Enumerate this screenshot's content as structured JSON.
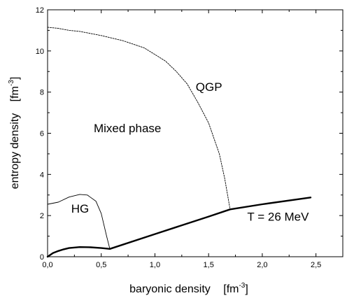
{
  "chart_data": {
    "type": "line",
    "xlabel": "baryonic density",
    "xunit_base": "fm",
    "xunit_exp": "-3",
    "ylabel": "entropy density",
    "yunit_base": "fm",
    "yunit_exp": "-3",
    "xlim": [
      0,
      2.75
    ],
    "ylim": [
      0,
      12
    ],
    "xticks": [
      0,
      0.5,
      1.0,
      1.5,
      2.0,
      2.5
    ],
    "xtick_labels": [
      "0,0",
      "0,5",
      "1,0",
      "1,5",
      "2,0",
      "2,5"
    ],
    "yticks": [
      0,
      2,
      4,
      6,
      8,
      10,
      12
    ],
    "ytick_labels": [
      "0",
      "2",
      "4",
      "6",
      "8",
      "10",
      "12"
    ],
    "annotations": [
      {
        "text": "QGP",
        "x": 1.38,
        "y": 8.05
      },
      {
        "text": "Mixed phase",
        "x": 0.43,
        "y": 6.05
      },
      {
        "text": "HG",
        "x": 0.22,
        "y": 2.15
      },
      {
        "text": "T = 26 MeV",
        "x": 1.86,
        "y": 1.75
      }
    ],
    "series": [
      {
        "style": "thick-solid",
        "x": [
          0.0,
          0.05,
          0.1,
          0.15,
          0.2,
          0.3,
          0.4,
          0.5,
          0.58,
          1.0,
          1.5,
          1.7,
          2.0,
          2.45
        ],
        "y": [
          0.0,
          0.18,
          0.28,
          0.36,
          0.42,
          0.47,
          0.46,
          0.42,
          0.38,
          1.1,
          1.95,
          2.3,
          2.55,
          2.88
        ]
      },
      {
        "style": "thin-solid",
        "x": [
          0.0,
          0.1,
          0.2,
          0.3,
          0.37,
          0.45,
          0.5,
          0.55,
          0.58
        ],
        "y": [
          2.55,
          2.65,
          2.9,
          3.03,
          3.0,
          2.7,
          2.1,
          1.0,
          0.38
        ]
      },
      {
        "style": "dotted",
        "x": [
          0.0,
          0.1,
          0.2,
          0.3,
          0.5,
          0.7,
          0.9,
          1.1,
          1.2,
          1.3,
          1.4,
          1.5,
          1.6,
          1.65,
          1.7
        ],
        "y": [
          11.15,
          11.1,
          11.0,
          10.95,
          10.75,
          10.5,
          10.15,
          9.5,
          9.0,
          8.4,
          7.5,
          6.5,
          5.0,
          3.8,
          2.3
        ]
      }
    ]
  }
}
